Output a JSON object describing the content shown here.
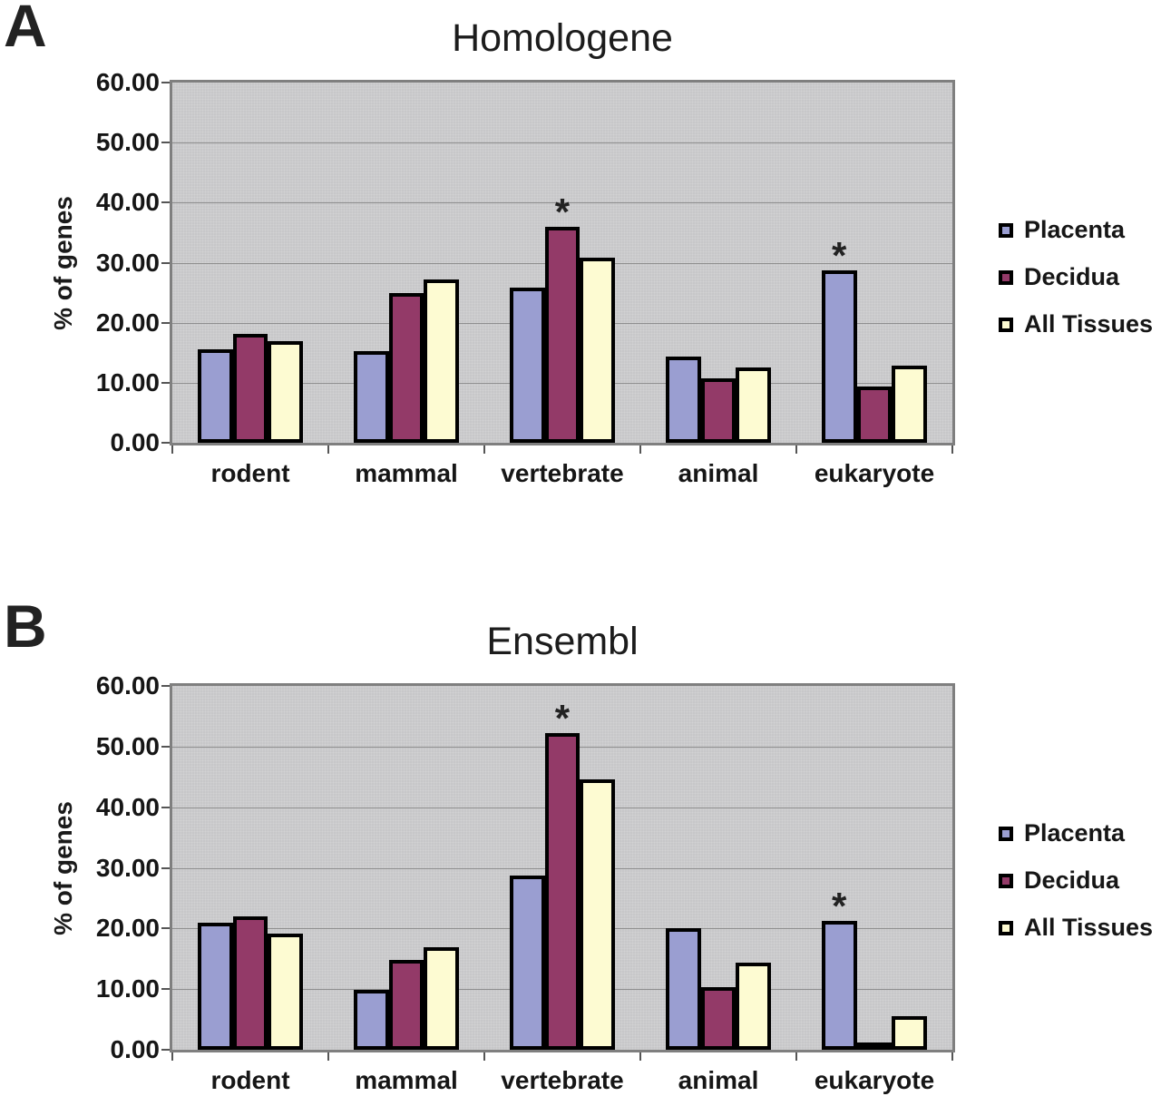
{
  "figure": {
    "type": "two-panel grouped bar chart",
    "plot_background": "#C7C7C9",
    "bar_border_color": "#000000"
  },
  "chart_data": [
    {
      "type": "bar",
      "panel_label": "A",
      "title": "Homologene",
      "xlabel": "",
      "ylabel": "% of genes",
      "ylim": [
        0,
        60
      ],
      "ytick_step": 10,
      "ytick_labels": [
        "60.00",
        "50.00",
        "40.00",
        "30.00",
        "20.00",
        "10.00",
        "0.00"
      ],
      "grid": true,
      "legend_position": "right",
      "categories": [
        "rodent",
        "mammal",
        "vertebrate",
        "animal",
        "eukaryote"
      ],
      "series": [
        {
          "name": "Placenta",
          "color": "#9A9ED1",
          "values": [
            15.6,
            15.2,
            25.8,
            14.4,
            28.7
          ]
        },
        {
          "name": "Decidua",
          "color": "#933A68",
          "values": [
            18.1,
            25.0,
            36.0,
            10.8,
            9.4
          ]
        },
        {
          "name": "All Tissues",
          "color": "#FDFBD2",
          "values": [
            16.9,
            27.2,
            30.8,
            12.5,
            12.8
          ]
        }
      ],
      "annotations": [
        {
          "category": "vertebrate",
          "series": "Decidua",
          "text": "*"
        },
        {
          "category": "eukaryote",
          "series": "Placenta",
          "text": "*"
        }
      ]
    },
    {
      "type": "bar",
      "panel_label": "B",
      "title": "Ensembl",
      "xlabel": "",
      "ylabel": "% of genes",
      "ylim": [
        0,
        60
      ],
      "ytick_step": 10,
      "ytick_labels": [
        "60.00",
        "50.00",
        "40.00",
        "30.00",
        "20.00",
        "10.00",
        "0.00"
      ],
      "grid": true,
      "legend_position": "right",
      "categories": [
        "rodent",
        "mammal",
        "vertebrate",
        "animal",
        "eukaryote"
      ],
      "series": [
        {
          "name": "Placenta",
          "color": "#9A9ED1",
          "values": [
            20.9,
            9.9,
            28.7,
            20.0,
            21.2
          ]
        },
        {
          "name": "Decidua",
          "color": "#933A68",
          "values": [
            22.0,
            14.8,
            52.2,
            10.3,
            1.1
          ]
        },
        {
          "name": "All Tissues",
          "color": "#FDFBD2",
          "values": [
            19.1,
            16.9,
            44.6,
            14.4,
            5.6
          ]
        }
      ],
      "annotations": [
        {
          "category": "vertebrate",
          "series": "Decidua",
          "text": "*"
        },
        {
          "category": "eukaryote",
          "series": "Placenta",
          "text": "*"
        }
      ]
    }
  ]
}
